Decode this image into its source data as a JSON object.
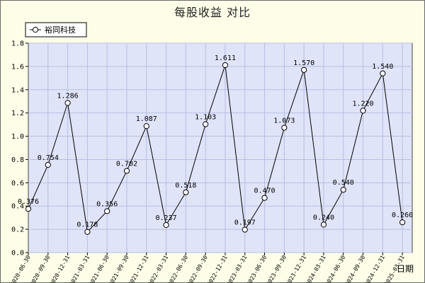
{
  "chart_data": {
    "type": "line",
    "title": "每股收益  对比",
    "xlabel": "日期",
    "ylabel": "",
    "ylim": [
      0,
      1.8
    ],
    "yticks": [
      0.0,
      0.2,
      0.4,
      0.6,
      0.8,
      1.0,
      1.2,
      1.4,
      1.6,
      1.8
    ],
    "grid": true,
    "legend": "top-left",
    "categories": [
      "2020-06-30",
      "2020-09-30",
      "2020-12-31",
      "2021-03-31",
      "2021-06-30",
      "2021-09-30",
      "2021-12-31",
      "2022-03-31",
      "2022-06-30",
      "2022-09-30",
      "2022-12-31",
      "2023-03-31",
      "2023-06-30",
      "2023-09-30",
      "2023-12-31",
      "2024-03-31",
      "2024-06-30",
      "2024-09-30",
      "2024-12-31",
      "2025-03-31"
    ],
    "series": [
      {
        "name": "裕同科技",
        "values": [
          0.376,
          0.754,
          1.286,
          0.178,
          0.356,
          0.702,
          1.087,
          0.237,
          0.518,
          1.103,
          1.611,
          0.197,
          0.47,
          1.073,
          1.57,
          0.24,
          0.54,
          1.22,
          1.54,
          0.26
        ],
        "labels": [
          "0.376",
          "0.754",
          "1.286",
          "0.178",
          "0.356",
          "0.702",
          "1.087",
          "0.237",
          "0.518",
          "1.103",
          "1.611",
          "0.197",
          "0.470",
          "1.073",
          "1.570",
          "0.240",
          "0.540",
          "1.220",
          "1.540",
          "0.260"
        ]
      }
    ],
    "colors": {
      "plot_background": "#dfe4f8",
      "page_background": "#fefee8",
      "line": "#000000",
      "grid": "#b7bfe2"
    }
  }
}
